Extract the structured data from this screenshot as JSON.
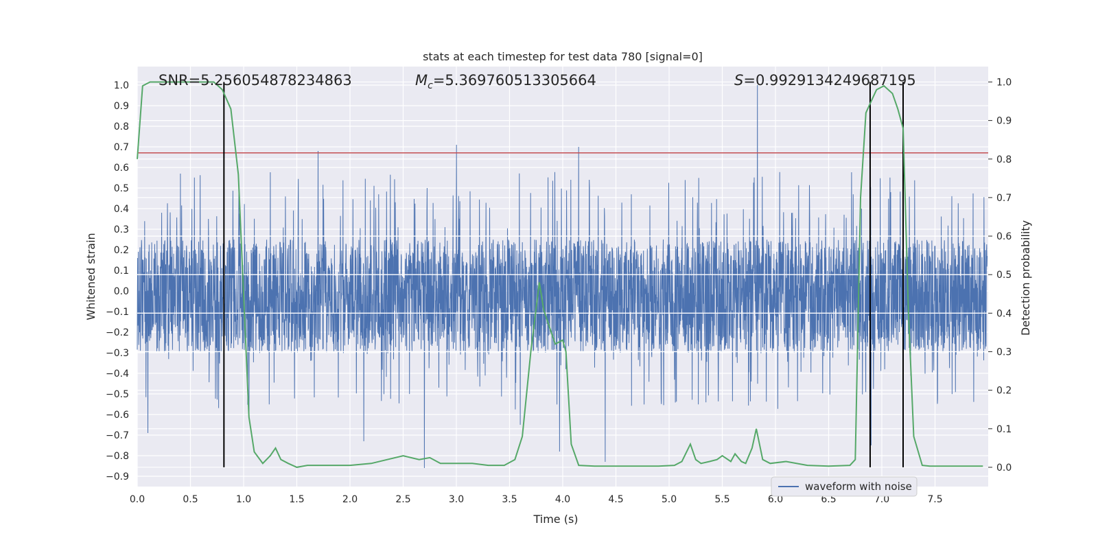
{
  "chart_data": {
    "type": "line",
    "title": "stats at each timestep for test data 780 [signal=0]",
    "xlabel": "Time (s)",
    "ylabel_left": "Whitened strain",
    "ylabel_right": "Detection probability",
    "xlim": [
      0,
      8.0
    ],
    "ylim_left": [
      -0.95,
      1.09
    ],
    "ylim_right": [
      -0.05,
      1.04
    ],
    "x_ticks": [
      0.0,
      0.5,
      1.0,
      1.5,
      2.0,
      2.5,
      3.0,
      3.5,
      4.0,
      4.5,
      5.0,
      5.5,
      6.0,
      6.5,
      7.0,
      7.5
    ],
    "x_tick_labels": [
      "0.0",
      "0.5",
      "1.0",
      "1.5",
      "2.0",
      "2.5",
      "3.0",
      "3.5",
      "4.0",
      "4.5",
      "5.0",
      "5.5",
      "6.0",
      "6.5",
      "7.0",
      "7.5"
    ],
    "y_ticks_left": [
      -0.9,
      -0.8,
      -0.7,
      -0.6,
      -0.5,
      -0.4,
      -0.3,
      -0.2,
      -0.1,
      0.0,
      0.1,
      0.2,
      0.3,
      0.4,
      0.5,
      0.6,
      0.7,
      0.8,
      0.9,
      1.0
    ],
    "y_tick_labels_left": [
      "−0.9",
      "−0.8",
      "−0.7",
      "−0.6",
      "−0.5",
      "−0.4",
      "−0.3",
      "−0.2",
      "−0.1",
      "0.0",
      "0.1",
      "0.2",
      "0.3",
      "0.4",
      "0.5",
      "0.6",
      "0.7",
      "0.8",
      "0.9",
      "1.0"
    ],
    "y_ticks_right": [
      0.0,
      0.1,
      0.2,
      0.3,
      0.4,
      0.5,
      0.6,
      0.7,
      0.8,
      0.9,
      1.0
    ],
    "y_tick_labels_right": [
      "0.0",
      "0.1",
      "0.2",
      "0.3",
      "0.4",
      "0.5",
      "0.6",
      "0.7",
      "0.8",
      "0.9",
      "1.0"
    ],
    "grid": true,
    "legend_placement": "lower-right",
    "annotations": {
      "snr": "SNR=5.256054878234863",
      "mc_symbol": "M",
      "mc_sub": "c",
      "mc_value": "=5.369760513305664",
      "s_symbol": "S",
      "s_value": "=0.9929134249687195"
    },
    "waveform": {
      "name": "waveform with noise",
      "color": "#4c72b0",
      "dense_band": [
        -0.3,
        0.25
      ],
      "seed": 780,
      "spikes": [
        [
          5.83,
          1.0
        ],
        [
          3.0,
          0.71
        ],
        [
          4.15,
          0.7
        ],
        [
          1.7,
          0.68
        ],
        [
          2.7,
          -0.86
        ],
        [
          4.4,
          -0.83
        ],
        [
          6.9,
          -0.75
        ],
        [
          3.97,
          -0.78
        ],
        [
          1.05,
          -0.62
        ],
        [
          0.1,
          -0.69
        ],
        [
          2.13,
          -0.73
        ],
        [
          3.6,
          -0.65
        ]
      ]
    },
    "probability": {
      "color": "#55a868",
      "x": [
        0.0,
        0.05,
        0.12,
        0.3,
        0.5,
        0.72,
        0.8,
        0.88,
        0.95,
        1.05,
        1.1,
        1.18,
        1.25,
        1.3,
        1.35,
        1.42,
        1.5,
        1.6,
        1.8,
        2.0,
        2.2,
        2.35,
        2.5,
        2.65,
        2.75,
        2.85,
        3.0,
        3.15,
        3.3,
        3.45,
        3.55,
        3.62,
        3.7,
        3.78,
        3.82,
        3.88,
        3.93,
        4.0,
        4.03,
        4.08,
        4.15,
        4.3,
        4.6,
        4.9,
        5.05,
        5.12,
        5.2,
        5.25,
        5.3,
        5.38,
        5.45,
        5.5,
        5.58,
        5.62,
        5.68,
        5.72,
        5.78,
        5.82,
        5.88,
        5.95,
        6.1,
        6.3,
        6.5,
        6.7,
        6.75,
        6.8,
        6.85,
        6.9,
        6.95,
        7.02,
        7.1,
        7.15,
        7.2,
        7.25,
        7.3,
        7.38,
        7.45,
        7.6,
        7.95
      ],
      "y": [
        0.8,
        0.99,
        1.0,
        1.0,
        1.0,
        1.0,
        0.98,
        0.93,
        0.76,
        0.13,
        0.04,
        0.01,
        0.03,
        0.05,
        0.02,
        0.01,
        0.0,
        0.005,
        0.005,
        0.005,
        0.01,
        0.02,
        0.03,
        0.02,
        0.025,
        0.01,
        0.01,
        0.01,
        0.005,
        0.005,
        0.02,
        0.08,
        0.3,
        0.48,
        0.41,
        0.36,
        0.32,
        0.33,
        0.3,
        0.06,
        0.005,
        0.003,
        0.003,
        0.003,
        0.005,
        0.015,
        0.06,
        0.02,
        0.01,
        0.015,
        0.02,
        0.03,
        0.015,
        0.035,
        0.015,
        0.01,
        0.05,
        0.1,
        0.02,
        0.01,
        0.015,
        0.005,
        0.003,
        0.005,
        0.02,
        0.7,
        0.92,
        0.95,
        0.98,
        0.99,
        0.97,
        0.93,
        0.88,
        0.4,
        0.08,
        0.005,
        0.003,
        0.003,
        0.003
      ]
    },
    "threshold_line": {
      "value": 0.816,
      "color": "#c44e52"
    },
    "vertical_lines": [
      0.815,
      6.89,
      7.2
    ],
    "vertical_line_color": "#000000"
  }
}
